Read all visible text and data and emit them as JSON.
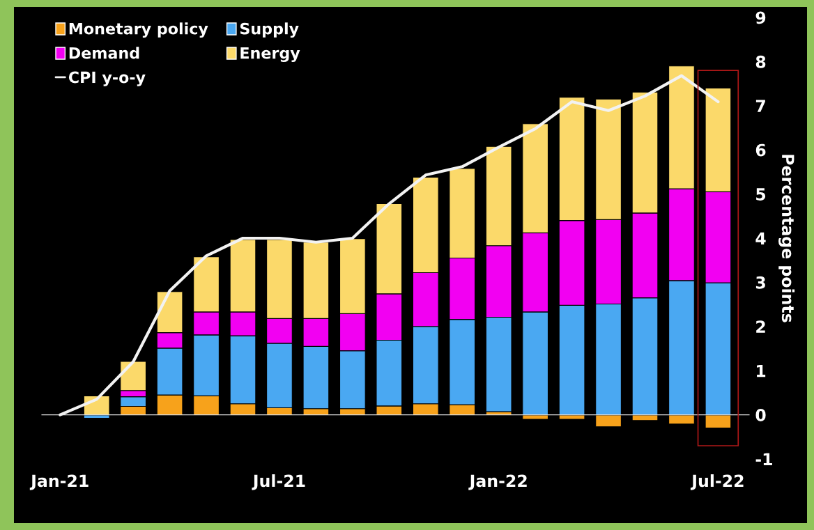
{
  "chart_data": {
    "type": "bar",
    "stacked": true,
    "ylabel": "Percentage points",
    "categories": [
      "Jan-21",
      null,
      null,
      null,
      null,
      null,
      "Jul-21",
      null,
      null,
      null,
      null,
      null,
      "Jan-22",
      null,
      null,
      null,
      null,
      null,
      "Jul-22"
    ],
    "series": [
      {
        "name": "Monetary policy",
        "color": "#f7a21b",
        "values": [
          null,
          null,
          0.19,
          0.45,
          0.43,
          0.25,
          0.16,
          0.14,
          0.14,
          0.2,
          0.25,
          0.23,
          0.07,
          -0.1,
          -0.1,
          -0.27,
          -0.13,
          -0.21,
          -0.3
        ]
      },
      {
        "name": "Supply",
        "color": "#4aa8f2",
        "values": [
          null,
          -0.08,
          0.22,
          1.06,
          1.38,
          1.54,
          1.46,
          1.41,
          1.31,
          1.49,
          1.75,
          1.93,
          2.14,
          2.33,
          2.48,
          2.51,
          2.65,
          3.04,
          2.99
        ]
      },
      {
        "name": "Demand",
        "color": "#f200f2",
        "values": [
          null,
          null,
          0.14,
          0.35,
          0.52,
          0.54,
          0.56,
          0.63,
          0.84,
          1.05,
          1.22,
          1.39,
          1.62,
          1.79,
          1.92,
          1.91,
          1.92,
          2.08,
          2.06
        ]
      },
      {
        "name": "Energy",
        "color": "#fbd96a",
        "values": [
          null,
          0.43,
          0.66,
          0.93,
          1.25,
          1.64,
          1.79,
          1.73,
          1.7,
          2.04,
          2.16,
          2.03,
          2.25,
          2.47,
          2.79,
          2.73,
          2.74,
          2.78,
          2.35
        ]
      },
      {
        "name": "CPI y-o-y",
        "type": "line",
        "color": "#f2f2f2",
        "values": [
          0,
          0.35,
          1.2,
          2.81,
          3.6,
          4.0,
          4.0,
          3.91,
          4.0,
          4.78,
          5.43,
          5.62,
          6.06,
          6.48,
          7.09,
          6.89,
          7.22,
          7.68,
          7.09
        ]
      }
    ],
    "ylim": [
      -1,
      9
    ],
    "yticks": [
      -1,
      0,
      1,
      2,
      3,
      4,
      5,
      6,
      7,
      8,
      9
    ],
    "legend": "top left"
  }
}
